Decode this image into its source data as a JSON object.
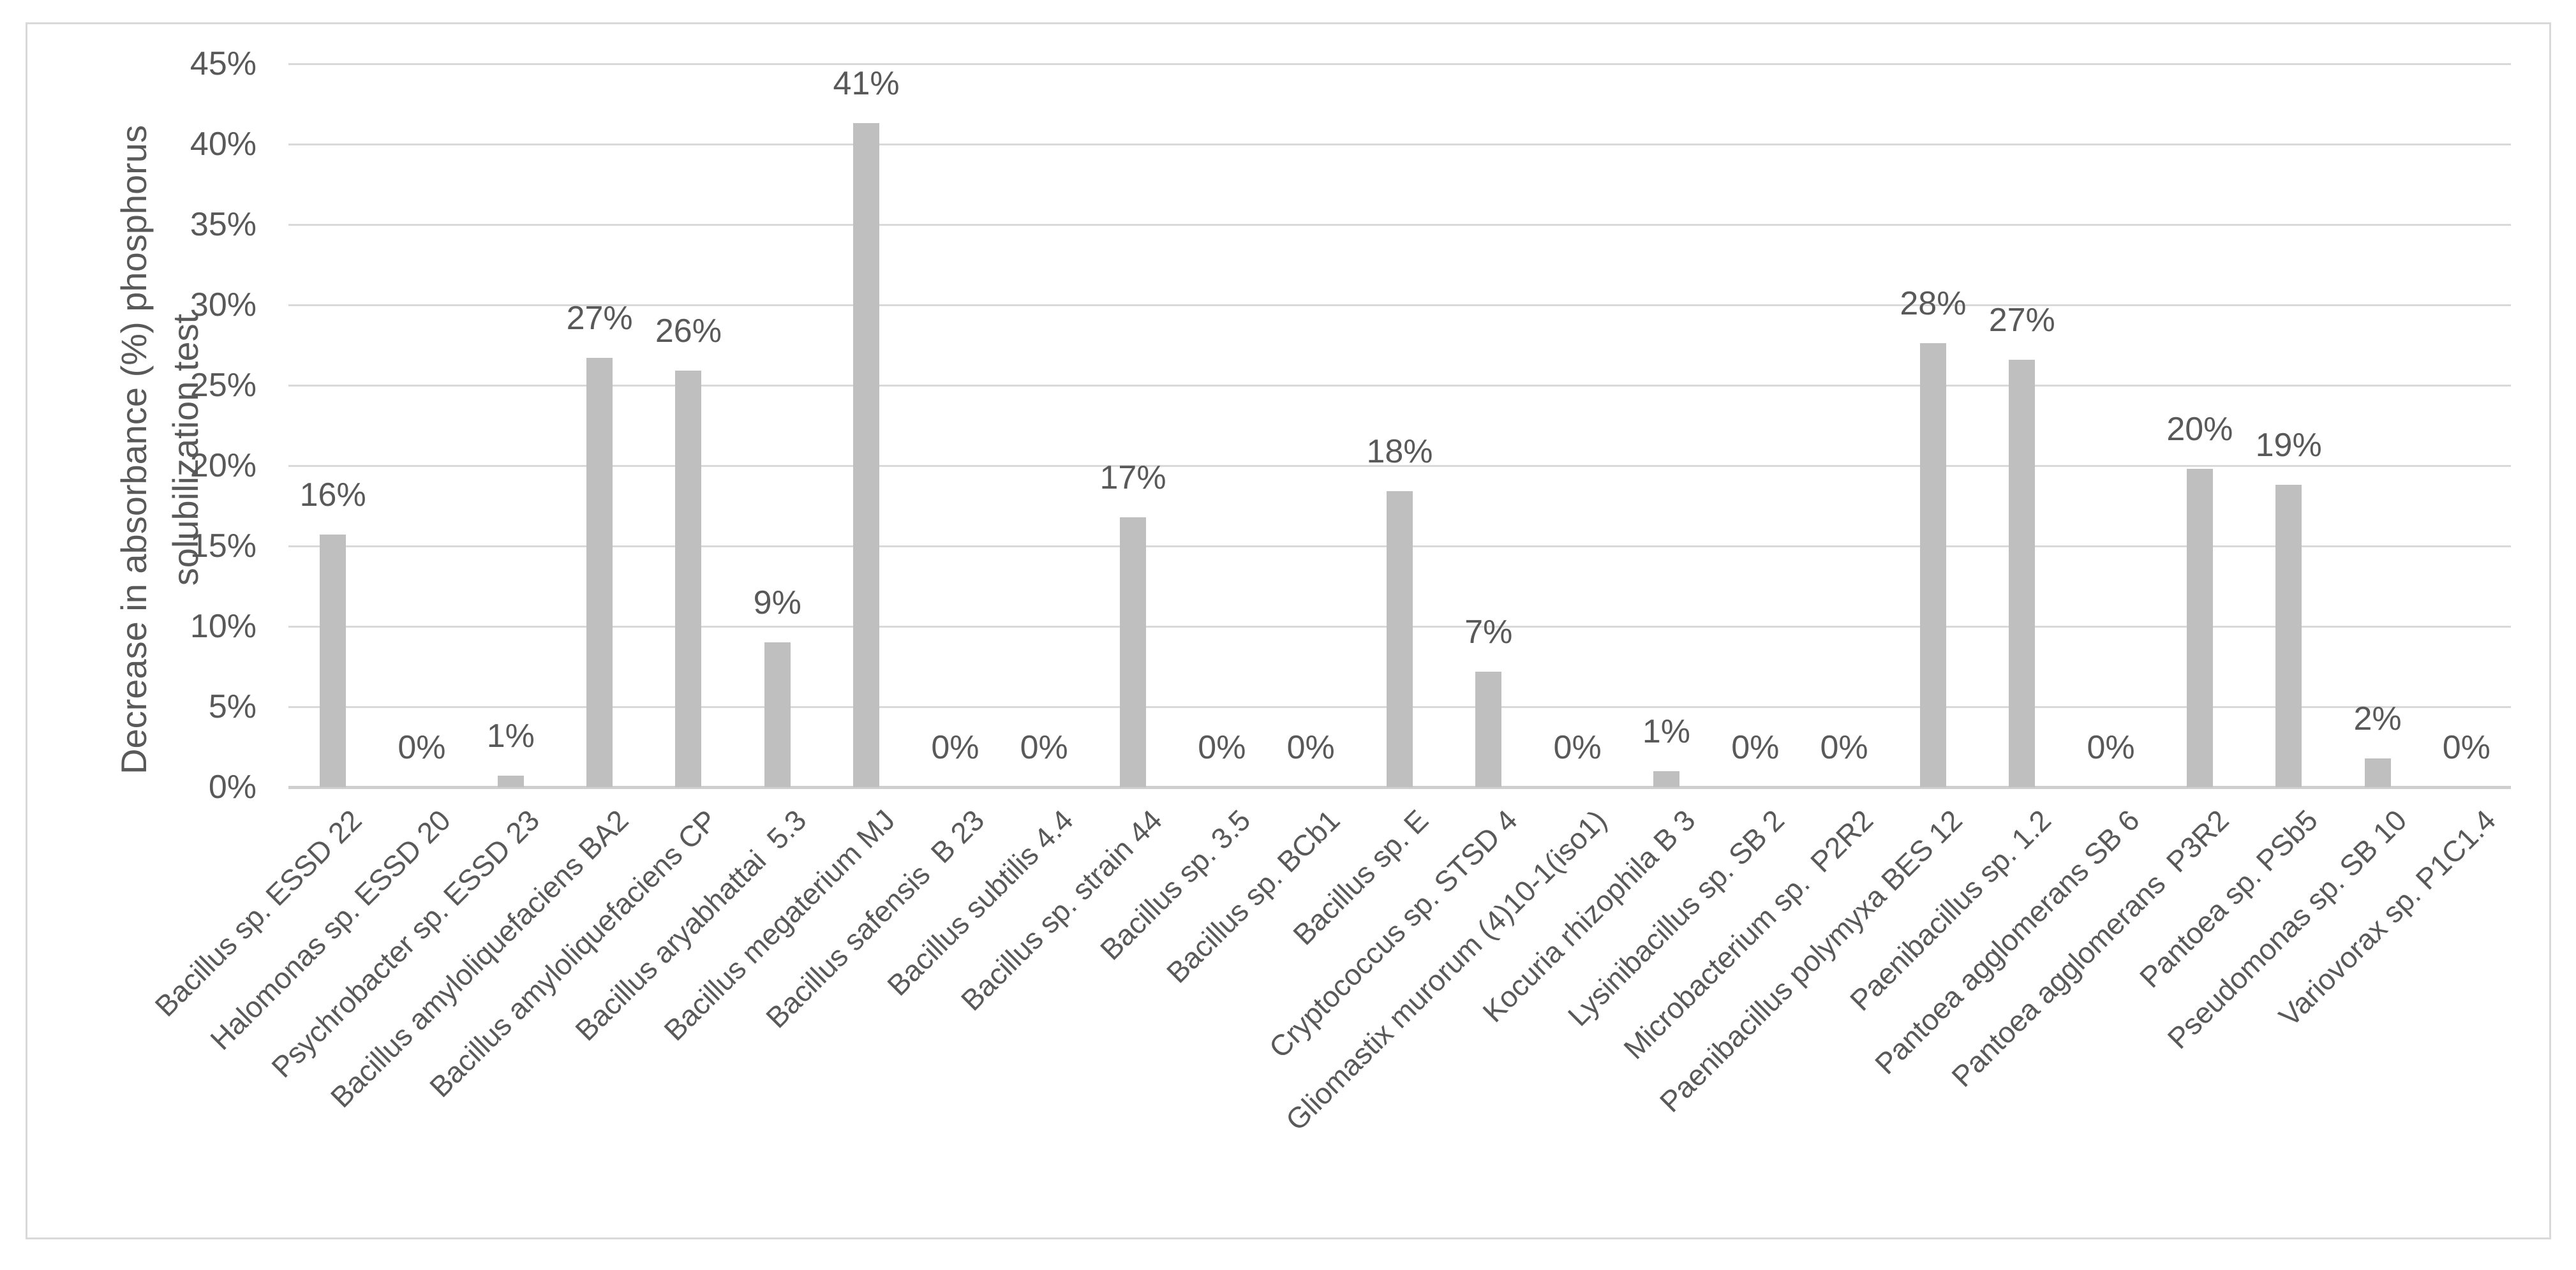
{
  "chart_data": {
    "type": "bar",
    "title": "",
    "xlabel": "",
    "ylabel_lines": [
      "Decrease in absorbance (%) phosphorus",
      "solubilization test"
    ],
    "ylim": [
      0,
      45
    ],
    "ytick_step": 5,
    "ytick_labels": [
      "0%",
      "5%",
      "10%",
      "15%",
      "20%",
      "25%",
      "30%",
      "35%",
      "40%",
      "45%"
    ],
    "grid": true,
    "legend": "none",
    "bar_color": "#bfbfbf",
    "categories": [
      "Bacillus sp. ESSD 22",
      "Halomonas sp. ESSD 20",
      "Psychrobacter sp. ESSD 23",
      "Bacillus amyloliquefaciens BA2",
      "Bacillus amyloliquefaciens CP",
      "Bacillus aryabhattai  5.3",
      "Bacillus megaterium MJ",
      "Bacillus safensis  B 23",
      "Bacillus subtilis 4.4",
      "Bacillus sp. strain 44",
      "Bacillus sp. 3.5",
      "Bacillus sp. BCb1",
      "Bacillus sp. E",
      "Cryptococcus sp. STSD 4",
      "Gliomastix murorum (4)10-1(iso1)",
      "Kocuria rhizophila B 3",
      "Lysinibacillus sp. SB 2",
      "Microbacterium sp.  P2R2",
      "Paenibacillus polymyxa BES 12",
      "Paenibacillus sp. 1.2",
      "Pantoea agglomerans SB 6",
      "Pantoea agglomerans  P3R2",
      "Pantoea sp. PSb5",
      "Pseudomonas sp. SB 10",
      "Variovorax sp. P1C1.4"
    ],
    "values": [
      15.7,
      0,
      0.7,
      26.7,
      25.9,
      9.0,
      41.3,
      0,
      0,
      16.8,
      0,
      0,
      18.4,
      7.2,
      0,
      1.0,
      0,
      0,
      27.6,
      26.6,
      0,
      19.8,
      18.8,
      1.8,
      0
    ],
    "data_labels": [
      "16%",
      "0%",
      "1%",
      "27%",
      "26%",
      "9%",
      "41%",
      "0%",
      "0%",
      "17%",
      "0%",
      "0%",
      "18%",
      "7%",
      "0%",
      "1%",
      "0%",
      "0%",
      "28%",
      "27%",
      "0%",
      "20%",
      "19%",
      "2%",
      "0%"
    ]
  },
  "colors": {
    "text": "#595959",
    "bar": "#bfbfbf",
    "gridline": "#d9d9d9",
    "axis_line": "#cfcfcf",
    "frame_border": "#d9d9d9",
    "background": "#ffffff"
  }
}
